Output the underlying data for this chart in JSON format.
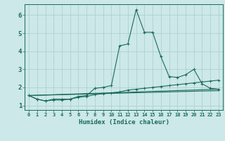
{
  "title": "",
  "xlabel": "Humidex (Indice chaleur)",
  "ylabel": "",
  "bg_color": "#cce8e8",
  "grid_color": "#aacccc",
  "line_color": "#1a6b5a",
  "xlim": [
    -0.5,
    23.5
  ],
  "ylim": [
    0.75,
    6.6
  ],
  "xticks": [
    0,
    1,
    2,
    3,
    4,
    5,
    6,
    7,
    8,
    9,
    10,
    11,
    12,
    13,
    14,
    15,
    16,
    17,
    18,
    19,
    20,
    21,
    22,
    23
  ],
  "yticks": [
    1,
    2,
    3,
    4,
    5,
    6
  ],
  "series1_x": [
    0,
    1,
    2,
    3,
    4,
    5,
    6,
    7,
    8,
    9,
    10,
    11,
    12,
    13,
    14,
    15,
    16,
    17,
    18,
    19,
    20,
    21,
    22,
    23
  ],
  "series1_y": [
    1.55,
    1.35,
    1.25,
    1.35,
    1.35,
    1.35,
    1.5,
    1.55,
    1.95,
    2.0,
    2.1,
    4.3,
    4.4,
    6.3,
    5.05,
    5.05,
    3.7,
    2.6,
    2.55,
    2.7,
    3.0,
    2.2,
    1.95,
    1.9
  ],
  "series2_x": [
    0,
    1,
    2,
    3,
    4,
    5,
    6,
    7,
    8,
    9,
    10,
    11,
    12,
    13,
    14,
    15,
    16,
    17,
    18,
    19,
    20,
    21,
    22,
    23
  ],
  "series2_y": [
    1.55,
    1.35,
    1.25,
    1.3,
    1.3,
    1.35,
    1.45,
    1.5,
    1.6,
    1.65,
    1.7,
    1.75,
    1.85,
    1.9,
    1.95,
    2.0,
    2.05,
    2.1,
    2.15,
    2.2,
    2.25,
    2.3,
    2.35,
    2.4
  ],
  "series3_x": [
    0,
    23
  ],
  "series3_y": [
    1.55,
    1.9
  ],
  "series4_x": [
    0,
    23
  ],
  "series4_y": [
    1.55,
    1.82
  ]
}
